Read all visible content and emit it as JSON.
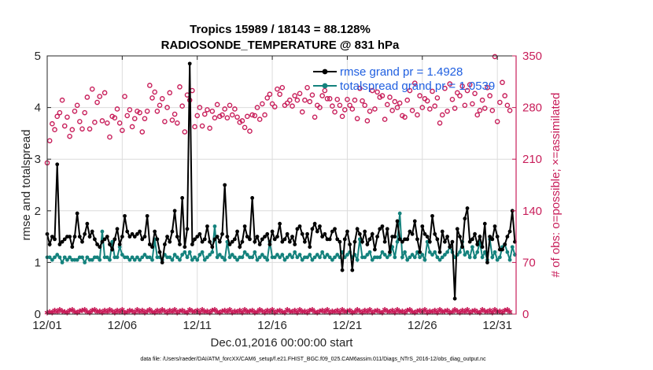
{
  "chart_data": {
    "type": "line",
    "title": "Tropics 15989 / 18143 = 88.128%",
    "subtitle": "RADIOSONDE_TEMPERATURE @ 831 hPa",
    "xlabel": "Dec.01,2016 00:00:00 start",
    "ylabel": "rmse and totalspread",
    "ylabel_right": "# of obs: o=possible; ×=assimilated",
    "footnote": "data file: /Users/raeder/DAI/ATM_forcXX/CAM6_setup/f.e21.FHIST_BGC.f09_025.CAM6assim.011/Diags_NTrS_2016-12/obs_diag_output.nc",
    "xlim": [
      0,
      31.25
    ],
    "ylim": [
      0,
      5
    ],
    "ylim_right": [
      0,
      350
    ],
    "x_ticks": [
      0,
      5,
      10,
      15,
      20,
      25,
      30
    ],
    "x_tick_labels": [
      "12/01",
      "12/06",
      "12/11",
      "12/16",
      "12/21",
      "12/26",
      "12/31"
    ],
    "y_ticks": [
      0,
      1,
      2,
      3,
      4,
      5
    ],
    "y_tick_labels": [
      "0",
      "1",
      "2",
      "3",
      "4",
      "5"
    ],
    "y_ticks_right": [
      0,
      70,
      140,
      210,
      280,
      350
    ],
    "y_tick_labels_right": [
      "0",
      "70",
      "140",
      "210",
      "280",
      "350"
    ],
    "legend": [
      {
        "label": "rmse grand pr = 1.4928",
        "color": "#000000"
      },
      {
        "label": "totalspread grand pr = 1.0539",
        "color": "#14827d"
      }
    ],
    "colors": {
      "rmse": "#000000",
      "spread": "#14827d",
      "counts": "#c81e5a"
    },
    "series": [
      {
        "name": "rmse",
        "values": [
          1.55,
          1.35,
          1.5,
          1.45,
          2.9,
          1.35,
          1.4,
          1.45,
          1.5,
          1.5,
          1.3,
          1.5,
          1.95,
          1.5,
          1.4,
          1.55,
          1.75,
          1.5,
          1.6,
          1.45,
          1.35,
          1.3,
          1.4,
          1.45,
          1.5,
          1.35,
          1.25,
          1.45,
          1.65,
          1.35,
          1.5,
          1.9,
          1.6,
          1.5,
          1.55,
          1.5,
          1.55,
          1.6,
          1.45,
          1.5,
          1.9,
          1.35,
          1.3,
          1.6,
          1.45,
          1.2,
          1.0,
          1.35,
          1.5,
          1.4,
          1.6,
          2.0,
          1.5,
          1.35,
          2.25,
          1.3,
          1.65,
          4.85,
          1.35,
          1.45,
          1.5,
          1.55,
          1.4,
          1.45,
          1.7,
          1.4,
          1.3,
          1.45,
          1.5,
          1.4,
          1.55,
          2.5,
          1.5,
          1.35,
          1.4,
          1.45,
          1.6,
          1.3,
          1.4,
          1.7,
          1.5,
          1.45,
          2.25,
          1.4,
          1.5,
          1.35,
          1.45,
          1.5,
          1.55,
          1.35,
          1.6,
          1.45,
          1.5,
          1.75,
          1.4,
          1.45,
          1.55,
          1.4,
          1.5,
          1.35,
          1.65,
          1.7,
          1.55,
          1.4,
          1.55,
          1.3,
          1.65,
          1.75,
          1.6,
          1.7,
          1.5,
          1.55,
          1.45,
          1.45,
          1.6,
          1.65,
          1.45,
          1.4,
          0.85,
          1.45,
          1.6,
          1.35,
          0.85,
          1.4,
          1.65,
          1.55,
          1.4,
          1.6,
          1.35,
          1.45,
          1.55,
          1.25,
          1.5,
          1.65,
          1.7,
          1.4,
          1.65,
          1.2,
          1.5,
          1.5,
          1.8,
          1.45,
          1.4,
          1.45,
          1.45,
          1.6,
          1.55,
          1.8,
          1.45,
          1.2,
          1.7,
          1.55,
          1.5,
          1.4,
          1.9,
          1.55,
          1.45,
          1.2,
          1.6,
          1.4,
          1.5,
          1.3,
          1.4,
          0.3,
          1.65,
          1.5,
          1.3,
          1.85,
          2.05,
          1.4,
          1.45,
          1.55,
          1.35,
          1.5,
          1.3,
          1.75,
          1.0,
          1.5,
          1.45,
          1.7,
          1.5,
          1.25,
          1.25,
          1.35,
          1.5,
          1.6,
          2.0,
          1.4
        ]
      },
      {
        "name": "totalspread",
        "values": [
          1.1,
          1.1,
          1.05,
          1.1,
          1.15,
          1.1,
          1.0,
          1.1,
          1.05,
          1.1,
          1.05,
          1.05,
          1.05,
          1.1,
          1.1,
          1.0,
          1.1,
          1.05,
          1.05,
          1.1,
          1.1,
          1.05,
          1.6,
          1.1,
          1.1,
          1.05,
          1.4,
          1.1,
          1.1,
          1.3,
          1.15,
          1.1,
          1.1,
          1.05,
          1.1,
          1.05,
          1.1,
          1.05,
          1.1,
          1.15,
          1.1,
          1.1,
          1.05,
          1.45,
          1.1,
          1.1,
          1.05,
          1.15,
          1.1,
          1.1,
          1.05,
          1.15,
          1.1,
          1.05,
          1.15,
          1.2,
          1.1,
          1.2,
          1.05,
          1.1,
          1.05,
          1.15,
          1.2,
          1.05,
          1.1,
          1.15,
          1.2,
          1.7,
          1.1,
          1.15,
          1.1,
          1.05,
          1.4,
          1.1,
          1.15,
          1.1,
          1.05,
          1.1,
          1.1,
          1.2,
          1.15,
          1.1,
          1.1,
          1.2,
          1.05,
          1.1,
          1.15,
          1.1,
          1.05,
          1.4,
          1.1,
          1.1,
          1.15,
          1.1,
          1.15,
          1.05,
          1.1,
          1.15,
          1.1,
          1.2,
          1.1,
          1.15,
          1.05,
          1.1,
          1.1,
          1.15,
          1.05,
          1.1,
          1.15,
          1.1,
          1.2,
          1.1,
          1.15,
          1.1,
          1.05,
          1.1,
          1.15,
          1.1,
          1.2,
          1.1,
          1.15,
          1.2,
          1.1,
          1.15,
          1.05,
          1.45,
          1.1,
          1.1,
          1.15,
          1.2,
          1.05,
          1.1,
          1.1,
          1.1,
          1.2,
          1.15,
          1.1,
          1.15,
          1.3,
          1.1,
          1.4,
          1.95,
          1.1,
          1.2,
          1.05,
          1.1,
          1.15,
          1.1,
          1.2,
          1.1,
          1.15,
          1.05,
          1.4,
          1.2,
          1.15,
          1.2,
          1.1,
          1.05,
          1.1,
          1.15,
          1.2,
          1.3,
          1.2,
          1.1,
          1.15,
          1.2,
          1.4,
          1.15,
          1.2,
          1.1,
          1.3,
          1.1,
          1.2,
          1.4,
          1.1,
          1.2,
          1.05,
          1.45,
          1.1,
          1.2,
          1.05,
          1.1,
          1.3,
          1.35,
          1.2,
          1.05,
          1.3,
          1.15
        ]
      },
      {
        "name": "possible",
        "values": [
          205,
          235,
          258,
          250,
          268,
          273,
          290,
          255,
          267,
          241,
          250,
          275,
          283,
          261,
          251,
          273,
          294,
          251,
          305,
          260,
          287,
          295,
          262,
          300,
          259,
          240,
          268,
          266,
          278,
          259,
          249,
          295,
          269,
          277,
          254,
          265,
          275,
          273,
          247,
          265,
          275,
          310,
          293,
          301,
          275,
          283,
          292,
          261,
          280,
          300,
          263,
          271,
          259,
          308,
          282,
          247,
          297,
          290,
          303,
          254,
          269,
          280,
          255,
          271,
          277,
          252,
          275,
          266,
          284,
          268,
          270,
          278,
          266,
          283,
          270,
          278,
          267,
          260,
          262,
          253,
          268,
          248,
          270,
          269,
          280,
          264,
          285,
          270,
          293,
          298,
          285,
          281,
          305,
          298,
          307,
          283,
          286,
          290,
          282,
          296,
          290,
          299,
          274,
          290,
          307,
          288,
          297,
          267,
          283,
          280,
          296,
          303,
          292,
          292,
          282,
          274,
          291,
          283,
          268,
          277,
          291,
          283,
          278,
          290,
          265,
          306,
          289,
          283,
          262,
          275,
          303,
          278,
          301,
          294,
          296,
          264,
          284,
          294,
          276,
          288,
          280,
          286,
          269,
          267,
          290,
          303,
          276,
          313,
          270,
          296,
          280,
          292,
          289,
          278,
          302,
          282,
          293,
          259,
          270,
          306,
          275,
          312,
          291,
          279,
          300,
          296,
          309,
          283,
          303,
          311,
          285,
          299,
          270,
          276,
          290,
          279,
          307,
          296,
          276,
          349,
          261,
          287,
          314,
          296,
          283,
          276
        ]
      },
      {
        "name": "assimilated",
        "values": [
          2,
          3,
          2,
          5,
          3,
          6,
          4,
          3,
          2,
          5,
          6,
          3,
          2,
          4,
          5,
          6,
          3,
          2,
          5,
          6,
          3,
          4,
          2,
          5,
          3,
          6,
          4,
          2,
          5,
          3,
          6,
          2,
          3,
          5,
          4,
          2,
          6,
          3,
          5,
          2,
          4,
          6,
          3,
          2,
          5,
          3,
          6,
          4,
          2,
          5,
          3,
          6,
          2,
          4,
          5,
          3,
          2,
          6,
          4,
          3,
          5,
          2,
          6,
          3,
          4,
          2,
          5,
          6,
          3,
          2,
          4,
          5,
          3,
          6,
          2,
          4,
          3,
          5,
          2,
          6,
          3,
          4,
          5,
          2,
          3,
          6,
          4,
          2,
          5,
          3,
          6,
          2,
          4,
          5,
          3,
          2,
          6,
          4,
          3,
          5,
          2,
          6,
          3,
          4,
          2,
          5,
          6,
          3,
          2,
          4,
          5,
          3,
          6,
          2,
          4,
          3,
          5,
          2,
          6,
          3,
          4,
          5,
          2,
          3,
          6,
          4,
          2,
          5,
          3,
          6,
          2,
          4,
          5,
          3,
          2,
          6,
          4,
          3,
          5,
          2,
          6,
          3,
          4,
          2,
          5,
          6,
          3,
          2,
          4,
          5,
          3,
          6,
          2,
          4,
          3,
          5,
          2,
          6,
          3,
          4,
          5,
          2,
          3,
          6,
          4,
          2,
          5,
          3,
          6,
          2,
          4,
          5,
          3,
          2,
          6,
          4,
          3,
          5,
          2,
          6,
          3,
          4,
          2,
          5,
          6,
          3
        ]
      }
    ]
  }
}
